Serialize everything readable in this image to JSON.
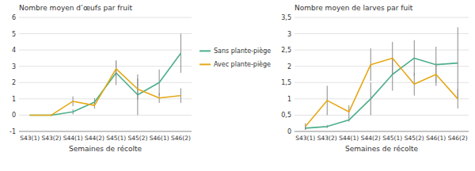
{
  "chart_data": [
    {
      "type": "line",
      "title": "Nombre moyen d’œufs par fruit",
      "x_label": "Semaines de récolte",
      "categories": [
        "S43(1)",
        "S43(2)",
        "S44(1)",
        "S44(2)",
        "S45(1)",
        "S45(2)",
        "S46(1)",
        "S46(2)"
      ],
      "series": [
        {
          "name": "Sans plante-piège",
          "color": "#4CAF8A",
          "values": [
            0.0,
            0.0,
            0.2,
            0.8,
            2.6,
            1.25,
            2.0,
            3.8
          ],
          "errors": [
            0.02,
            0.05,
            0.15,
            0.25,
            0.75,
            1.25,
            0.8,
            1.2
          ]
        },
        {
          "name": "Avec plante-piège",
          "color": "#E6A817",
          "values": [
            0.0,
            0.0,
            0.85,
            0.6,
            2.85,
            1.6,
            1.05,
            1.2
          ],
          "errors": [
            0.02,
            0.05,
            0.3,
            0.2,
            0.5,
            0.65,
            0.3,
            0.45
          ]
        }
      ],
      "ylim": [
        -1,
        6
      ],
      "yticks": [
        -1,
        0,
        1,
        2,
        3,
        4,
        5,
        6
      ],
      "grid": true,
      "legend": "right"
    },
    {
      "type": "line",
      "title": "Nombre moyen de larves par fuit",
      "x_label": "Semaines de récolte",
      "categories": [
        "S43(1)",
        "S43(2)",
        "S44(1)",
        "S44(2)",
        "S45(1)",
        "S45(2)",
        "S46(1)",
        "S46(2)"
      ],
      "series": [
        {
          "name": "Sans plante-piège",
          "color": "#4CAF8A",
          "values": [
            0.1,
            0.15,
            0.35,
            1.0,
            1.75,
            2.25,
            2.05,
            2.1
          ],
          "errors": [
            0.05,
            0.05,
            0.05,
            0.5,
            0.5,
            0.55,
            0.55,
            1.1
          ]
        },
        {
          "name": "Avec plante-piège",
          "color": "#E6A817",
          "values": [
            0.15,
            0.95,
            0.6,
            2.05,
            2.25,
            1.45,
            1.75,
            1.0
          ],
          "errors": [
            0.1,
            0.45,
            0.2,
            0.5,
            0.5,
            0.35,
            0.35,
            0.3
          ]
        }
      ],
      "ylim": [
        0,
        3.5
      ],
      "yticks": [
        0,
        {
          "value": 0.5,
          "label": "0,5"
        },
        1,
        {
          "value": 1.5,
          "label": "1,5"
        },
        2,
        {
          "value": 2.5,
          "label": "2,5"
        },
        3,
        {
          "value": 3.5,
          "label": "3,5"
        }
      ],
      "grid": true
    }
  ]
}
